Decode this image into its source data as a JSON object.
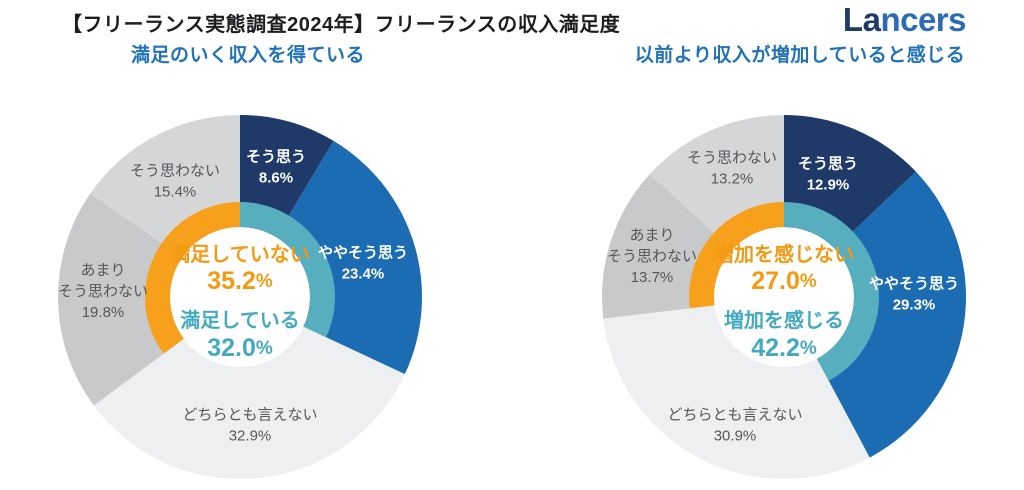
{
  "header": {
    "title": "【フリーランス実態調査2024年】フリーランスの収入満足度",
    "logo_full": "Lancers",
    "logo_part1": "La",
    "logo_part2": "ncers"
  },
  "colors": {
    "navy": "#1F3A69",
    "blue": "#1B6CB3",
    "teal": "#57AEBE",
    "orange": "#F6A01C",
    "gray_light": "#EDEFF0",
    "gray_mid": "#C7C9CB",
    "gray_soft": "#D4D6D8",
    "text_dark": "#55575B",
    "text_white": "#FFFFFF",
    "teal_text": "#45A9C0",
    "orange_text": "#F39A14",
    "subtitle": "#2272B8",
    "title": "#1D1D1F",
    "logo_navy": "#1E3A6B",
    "logo_blue": "#2C6CB4",
    "hole": "#FFFFFF"
  },
  "chart_data": [
    {
      "type": "donut",
      "title": "満足のいく収入を得ている",
      "legend_position": "on-slices",
      "start_angle_deg": 0,
      "segments": [
        {
          "label": "そう思う",
          "value": 8.6,
          "color": "navy",
          "text": "white",
          "lines": [
            "そう思う"
          ],
          "pos": [
            36,
            -130
          ]
        },
        {
          "label": "ややそう思う",
          "value": 23.4,
          "color": "blue",
          "text": "white",
          "lines": [
            "ややそう思う"
          ],
          "pos": [
            123,
            -34
          ]
        },
        {
          "label": "どちらとも言えない",
          "value": 32.9,
          "color": "gray_light",
          "text": "dark",
          "lines": [
            "どちらとも言えない"
          ],
          "pos": [
            10,
            128
          ]
        },
        {
          "label": "あまりそう思わない",
          "value": 19.8,
          "color": "gray_mid",
          "text": "dark",
          "lines": [
            "あまり",
            "そう思わない"
          ],
          "pos": [
            -137,
            -6
          ]
        },
        {
          "label": "そう思わない",
          "value": 15.4,
          "color": "gray_soft",
          "text": "dark",
          "lines": [
            "そう思わない"
          ],
          "pos": [
            -65,
            -116
          ]
        }
      ],
      "inner_summary": [
        {
          "label": "満足していない",
          "value": 35.2,
          "color": "orange",
          "covers": "last-two"
        },
        {
          "label": "満足している",
          "value": 32.0,
          "color": "teal",
          "covers": "first-two"
        }
      ]
    },
    {
      "type": "donut",
      "title": "以前より収入が増加していると感じる",
      "legend_position": "on-slices",
      "start_angle_deg": 0,
      "segments": [
        {
          "label": "そう思う",
          "value": 12.9,
          "color": "navy",
          "text": "white",
          "lines": [
            "そう思う"
          ],
          "pos": [
            44,
            -123
          ]
        },
        {
          "label": "ややそう思う",
          "value": 29.3,
          "color": "blue",
          "text": "white",
          "lines": [
            "ややそう思う"
          ],
          "pos": [
            130,
            -3
          ]
        },
        {
          "label": "どちらとも言えない",
          "value": 30.9,
          "color": "gray_light",
          "text": "dark",
          "lines": [
            "どちらとも言えない"
          ],
          "pos": [
            -49,
            128
          ]
        },
        {
          "label": "あまりそう思わない",
          "value": 13.7,
          "color": "gray_mid",
          "text": "dark",
          "lines": [
            "あまり",
            "そう思わない"
          ],
          "pos": [
            -132,
            -41
          ]
        },
        {
          "label": "そう思わない",
          "value": 13.2,
          "color": "gray_soft",
          "text": "dark",
          "lines": [
            "そう思わない"
          ],
          "pos": [
            -52,
            -129
          ]
        }
      ],
      "inner_summary": [
        {
          "label": "増加を感じない",
          "value": 27.0,
          "color": "orange",
          "covers": "last-two"
        },
        {
          "label": "増加を感じる",
          "value": 42.2,
          "color": "teal",
          "covers": "first-two"
        }
      ]
    }
  ]
}
